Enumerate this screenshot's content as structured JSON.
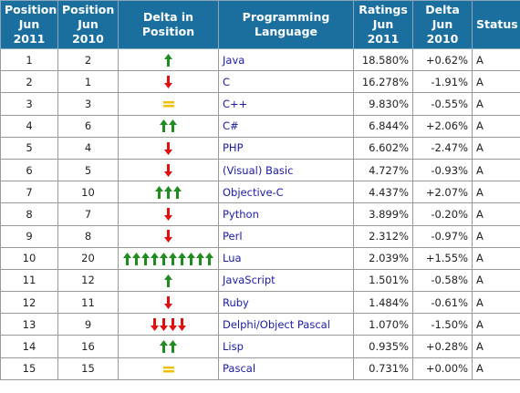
{
  "headers": [
    "Position\nJun 2011",
    "Position\nJun 2010",
    "Delta in Position",
    "Programming Language",
    "Ratings\nJun 2011",
    "Delta\nJun 2010",
    "Status"
  ],
  "colors": {
    "header_bg": "#1b6f9e",
    "up": "#1e8c1e",
    "down": "#e01010",
    "same": "#f0c000",
    "link": "#1a1aa6"
  },
  "rows": [
    {
      "pos2011": "1",
      "pos2010": "2",
      "delta_dir": "up",
      "delta_count": 1,
      "language": "Java",
      "rating": "18.580%",
      "delta": "+0.62%",
      "status": "A"
    },
    {
      "pos2011": "2",
      "pos2010": "1",
      "delta_dir": "down",
      "delta_count": 1,
      "language": "C",
      "rating": "16.278%",
      "delta": "-1.91%",
      "status": "A"
    },
    {
      "pos2011": "3",
      "pos2010": "3",
      "delta_dir": "same",
      "delta_count": 1,
      "language": "C++",
      "rating": "9.830%",
      "delta": "-0.55%",
      "status": "A"
    },
    {
      "pos2011": "4",
      "pos2010": "6",
      "delta_dir": "up",
      "delta_count": 2,
      "language": "C#",
      "rating": "6.844%",
      "delta": "+2.06%",
      "status": "A"
    },
    {
      "pos2011": "5",
      "pos2010": "4",
      "delta_dir": "down",
      "delta_count": 1,
      "language": "PHP",
      "rating": "6.602%",
      "delta": "-2.47%",
      "status": "A"
    },
    {
      "pos2011": "6",
      "pos2010": "5",
      "delta_dir": "down",
      "delta_count": 1,
      "language": "(Visual) Basic",
      "rating": "4.727%",
      "delta": "-0.93%",
      "status": "A"
    },
    {
      "pos2011": "7",
      "pos2010": "10",
      "delta_dir": "up",
      "delta_count": 3,
      "language": "Objective-C",
      "rating": "4.437%",
      "delta": "+2.07%",
      "status": "A"
    },
    {
      "pos2011": "8",
      "pos2010": "7",
      "delta_dir": "down",
      "delta_count": 1,
      "language": "Python",
      "rating": "3.899%",
      "delta": "-0.20%",
      "status": "A"
    },
    {
      "pos2011": "9",
      "pos2010": "8",
      "delta_dir": "down",
      "delta_count": 1,
      "language": "Perl",
      "rating": "2.312%",
      "delta": "-0.97%",
      "status": "A"
    },
    {
      "pos2011": "10",
      "pos2010": "20",
      "delta_dir": "up",
      "delta_count": 10,
      "language": "Lua",
      "rating": "2.039%",
      "delta": "+1.55%",
      "status": "A"
    },
    {
      "pos2011": "11",
      "pos2010": "12",
      "delta_dir": "up",
      "delta_count": 1,
      "language": "JavaScript",
      "rating": "1.501%",
      "delta": "-0.58%",
      "status": "A"
    },
    {
      "pos2011": "12",
      "pos2010": "11",
      "delta_dir": "down",
      "delta_count": 1,
      "language": "Ruby",
      "rating": "1.484%",
      "delta": "-0.61%",
      "status": "A"
    },
    {
      "pos2011": "13",
      "pos2010": "9",
      "delta_dir": "down",
      "delta_count": 4,
      "language": "Delphi/Object Pascal",
      "rating": "1.070%",
      "delta": "-1.50%",
      "status": "A"
    },
    {
      "pos2011": "14",
      "pos2010": "16",
      "delta_dir": "up",
      "delta_count": 2,
      "language": "Lisp",
      "rating": "0.935%",
      "delta": "+0.28%",
      "status": "A"
    },
    {
      "pos2011": "15",
      "pos2010": "15",
      "delta_dir": "same",
      "delta_count": 1,
      "language": "Pascal",
      "rating": "0.731%",
      "delta": "+0.00%",
      "status": "A"
    }
  ]
}
